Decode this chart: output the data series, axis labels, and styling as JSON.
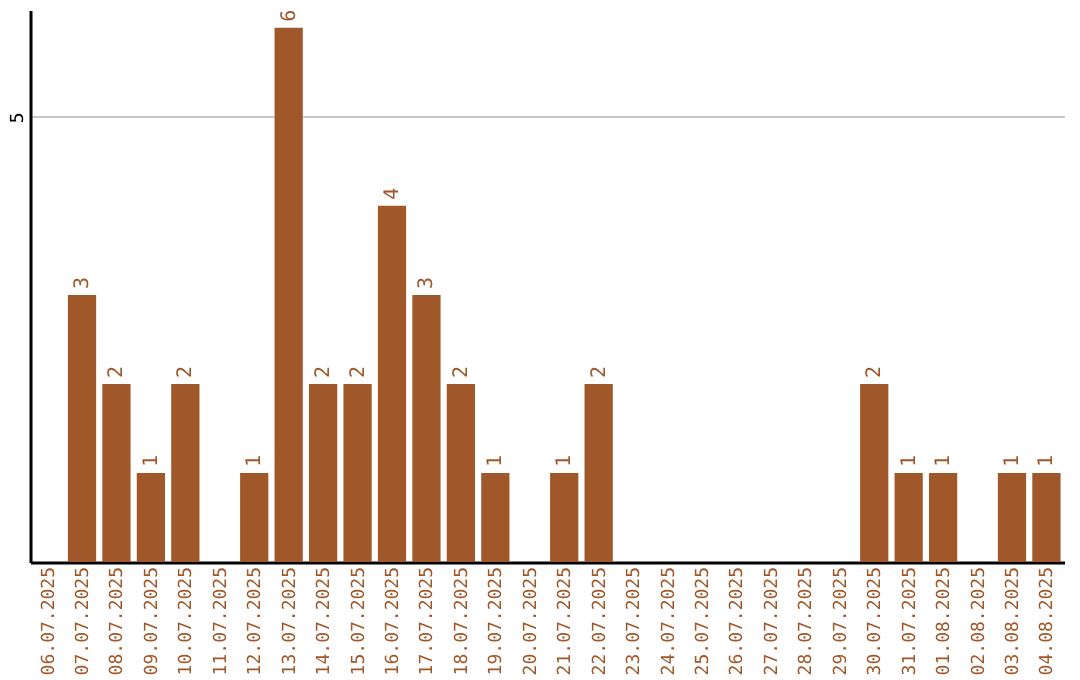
{
  "chart_data": {
    "type": "bar",
    "categories": [
      "06.07.2025",
      "07.07.2025",
      "08.07.2025",
      "09.07.2025",
      "10.07.2025",
      "11.07.2025",
      "12.07.2025",
      "13.07.2025",
      "14.07.2025",
      "15.07.2025",
      "16.07.2025",
      "17.07.2025",
      "18.07.2025",
      "19.07.2025",
      "20.07.2025",
      "21.07.2025",
      "22.07.2025",
      "23.07.2025",
      "24.07.2025",
      "25.07.2025",
      "26.07.2025",
      "27.07.2025",
      "28.07.2025",
      "29.07.2025",
      "30.07.2025",
      "31.07.2025",
      "01.08.2025",
      "02.08.2025",
      "03.08.2025",
      "04.08.2025"
    ],
    "values": [
      0,
      3,
      2,
      1,
      2,
      0,
      1,
      6,
      2,
      2,
      4,
      3,
      2,
      1,
      0,
      1,
      2,
      0,
      0,
      0,
      0,
      0,
      0,
      0,
      2,
      1,
      1,
      0,
      1,
      1
    ],
    "value_labels": [
      null,
      "3",
      "2",
      "1",
      "2",
      null,
      "1",
      "6",
      "2",
      "2",
      "4",
      "3",
      "2",
      "1",
      null,
      "1",
      "2",
      null,
      null,
      null,
      null,
      null,
      null,
      null,
      "2",
      "1",
      "1",
      null,
      "1",
      "1"
    ],
    "color": "#a0582a",
    "ylim": [
      0,
      6.2
    ],
    "yticks": [
      5
    ],
    "grid": "y"
  }
}
